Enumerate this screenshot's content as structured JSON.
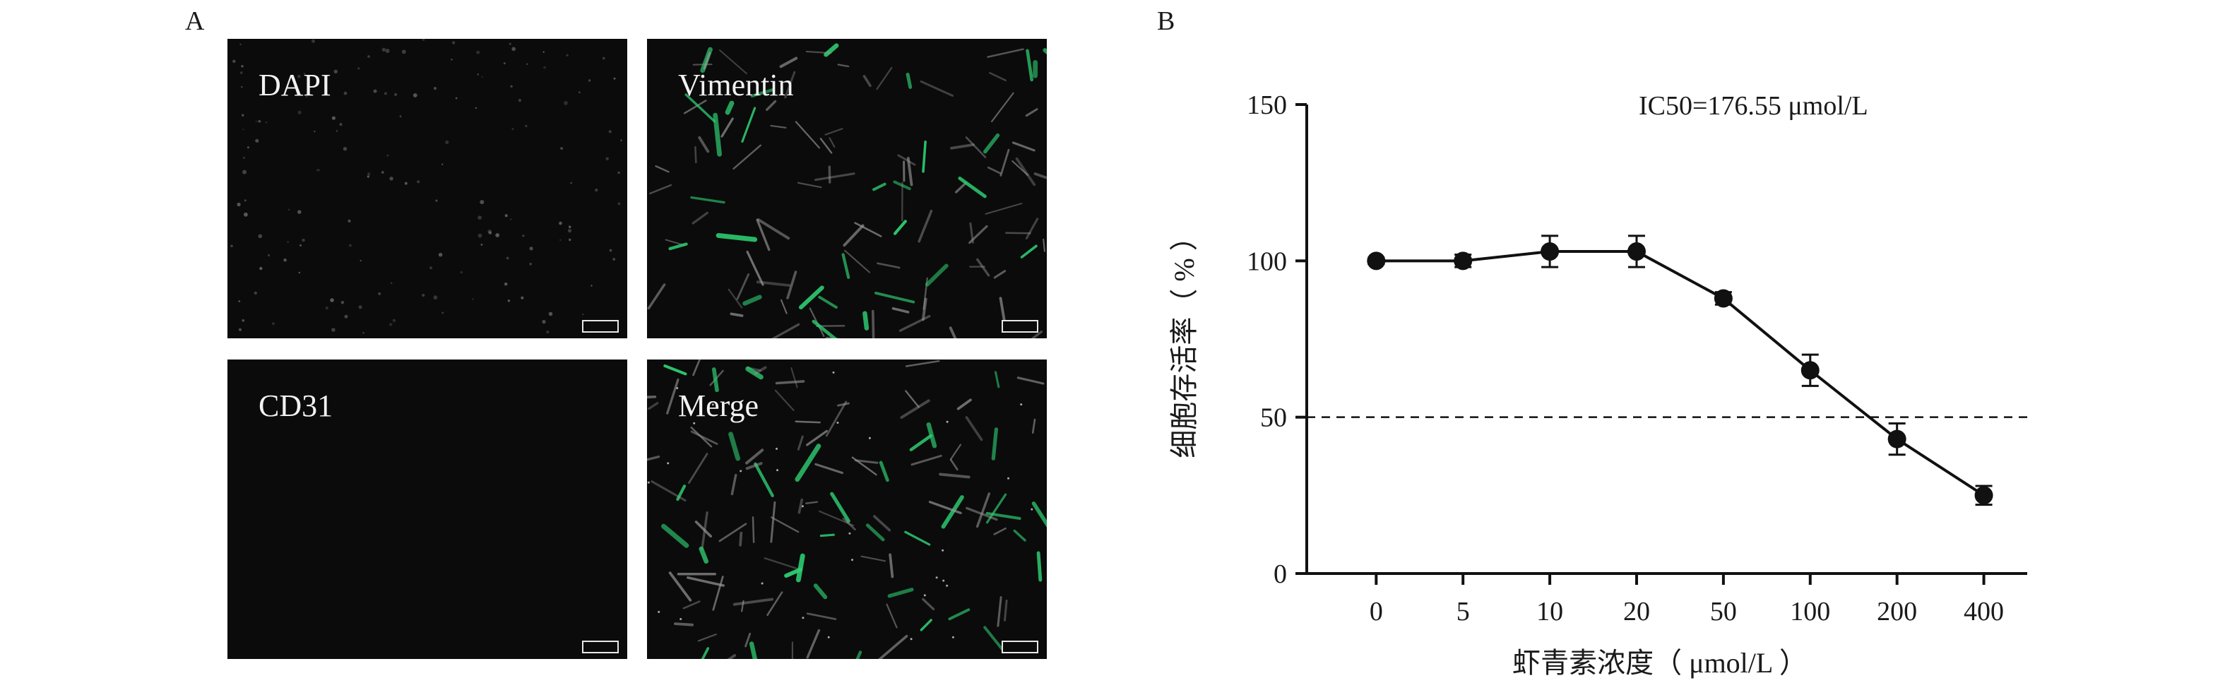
{
  "panel_a": {
    "letter": "A",
    "images": [
      {
        "id": "dapi",
        "label": "DAPI",
        "kind": "dapi"
      },
      {
        "id": "vimentin",
        "label": "Vimentin",
        "kind": "vimentin"
      },
      {
        "id": "cd31",
        "label": "CD31",
        "kind": "empty"
      },
      {
        "id": "merge",
        "label": "Merge",
        "kind": "merge"
      }
    ],
    "colors": {
      "background": "#0b0b0b",
      "vimentin": "#2ecf73",
      "cytoskeleton": "#9a9a9a"
    }
  },
  "panel_b": {
    "letter": "B",
    "annotation": "IC50=176.55 μmol/L"
  },
  "chart_data": {
    "type": "line",
    "categories": [
      "0",
      "5",
      "10",
      "20",
      "50",
      "100",
      "200",
      "400"
    ],
    "series": [
      {
        "values": [
          100,
          100,
          103,
          103,
          88,
          65,
          43,
          25
        ],
        "errors": [
          1,
          2,
          5,
          5,
          2,
          5,
          5,
          3
        ]
      }
    ],
    "xlabel": "虾青素浓度（ μmol/L ）",
    "ylabel": "细胞存活率（ % ）",
    "ylim": [
      0,
      150
    ],
    "yticks": [
      0,
      50,
      100,
      150
    ],
    "reference_line": {
      "y": 50,
      "style": "dashed"
    },
    "grid": false,
    "marker": "filled-circle",
    "color": "#111111"
  }
}
